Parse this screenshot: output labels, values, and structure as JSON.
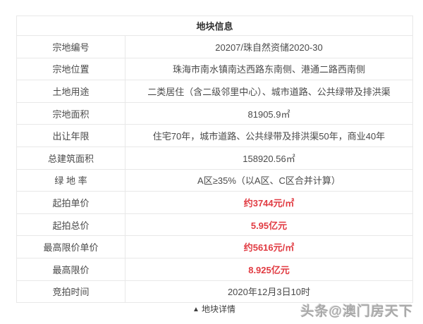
{
  "colors": {
    "table_border": "#e8e8e8",
    "text": "#4a4a4a",
    "header_text": "#333333",
    "highlight_red": "#e13b42",
    "watermark_gray": "#a9a9a9",
    "background": "#ffffff"
  },
  "table": {
    "title": "地块信息",
    "rows": [
      {
        "label": "宗地编号",
        "value": "20207/珠自然资储2020-30",
        "highlight": false
      },
      {
        "label": "宗地位置",
        "value": "珠海市南水镇南达西路东南侧、港通二路西南侧",
        "highlight": false
      },
      {
        "label": "土地用途",
        "value": "二类居住（含二级邻里中心）、城市道路、公共绿带及排洪渠",
        "highlight": false
      },
      {
        "label": "宗地面积",
        "value": "81905.9㎡",
        "highlight": false
      },
      {
        "label": "出让年限",
        "value": "住宅70年，城市道路、公共绿带及排洪渠50年，商业40年",
        "highlight": false
      },
      {
        "label": "总建筑面积",
        "value": "158920.56㎡",
        "highlight": false
      },
      {
        "label": "绿 地 率",
        "value": "A区≥35%（以A区、C区合并计算）",
        "highlight": false
      },
      {
        "label": "起拍单价",
        "value": "约3744元/㎡",
        "highlight": true
      },
      {
        "label": "起拍总价",
        "value": "5.95亿元",
        "highlight": true
      },
      {
        "label": "最高限价单价",
        "value": "约5616元/㎡",
        "highlight": true
      },
      {
        "label": "最高限价",
        "value": "8.925亿元",
        "highlight": true
      },
      {
        "label": "竞拍时间",
        "value": "2020年12月3日10时",
        "highlight": false
      }
    ]
  },
  "footer": {
    "triangle_icon": "▲",
    "toggle_label": "地块详情"
  },
  "watermark": {
    "text": "头条@澳门房天下"
  }
}
